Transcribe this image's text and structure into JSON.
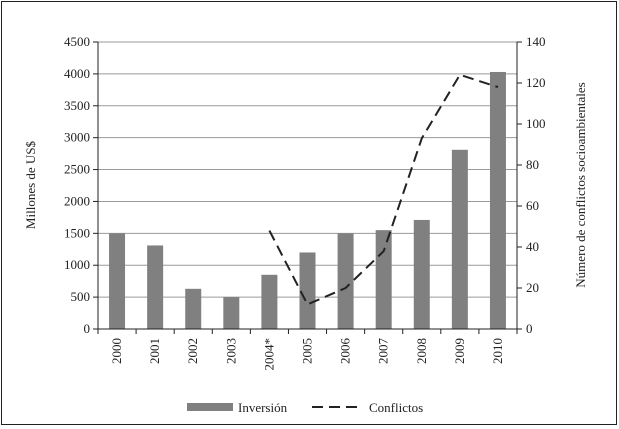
{
  "chart_data": {
    "type": "bar",
    "categories": [
      "2000",
      "2001",
      "2002",
      "2003",
      "2004*",
      "2005",
      "2006",
      "2007",
      "2008",
      "2009",
      "2010"
    ],
    "series": [
      {
        "name": "Inversión",
        "type": "bar",
        "axis": "left",
        "color": "#808080",
        "values": [
          1500,
          1310,
          630,
          500,
          850,
          1200,
          1500,
          1550,
          1710,
          2810,
          4030
        ]
      },
      {
        "name": "Conflictos",
        "type": "line",
        "axis": "right",
        "line_style": "dashed",
        "color": "#222222",
        "values": [
          null,
          null,
          null,
          null,
          48,
          12,
          20,
          38,
          93,
          124,
          118
        ]
      }
    ],
    "ylabel": "Millones de US$",
    "ylabel_right": "Número de conflictos socioambientales",
    "ylim": [
      0,
      4500
    ],
    "ylim_right": [
      0,
      140
    ],
    "yticks": [
      "0",
      "500",
      "1000",
      "1500",
      "2000",
      "2500",
      "3000",
      "3500",
      "4000",
      "4500"
    ],
    "yticks_right": [
      "0",
      "20",
      "40",
      "60",
      "80",
      "100",
      "120",
      "140"
    ],
    "grid": true,
    "legend_position": "bottom"
  }
}
